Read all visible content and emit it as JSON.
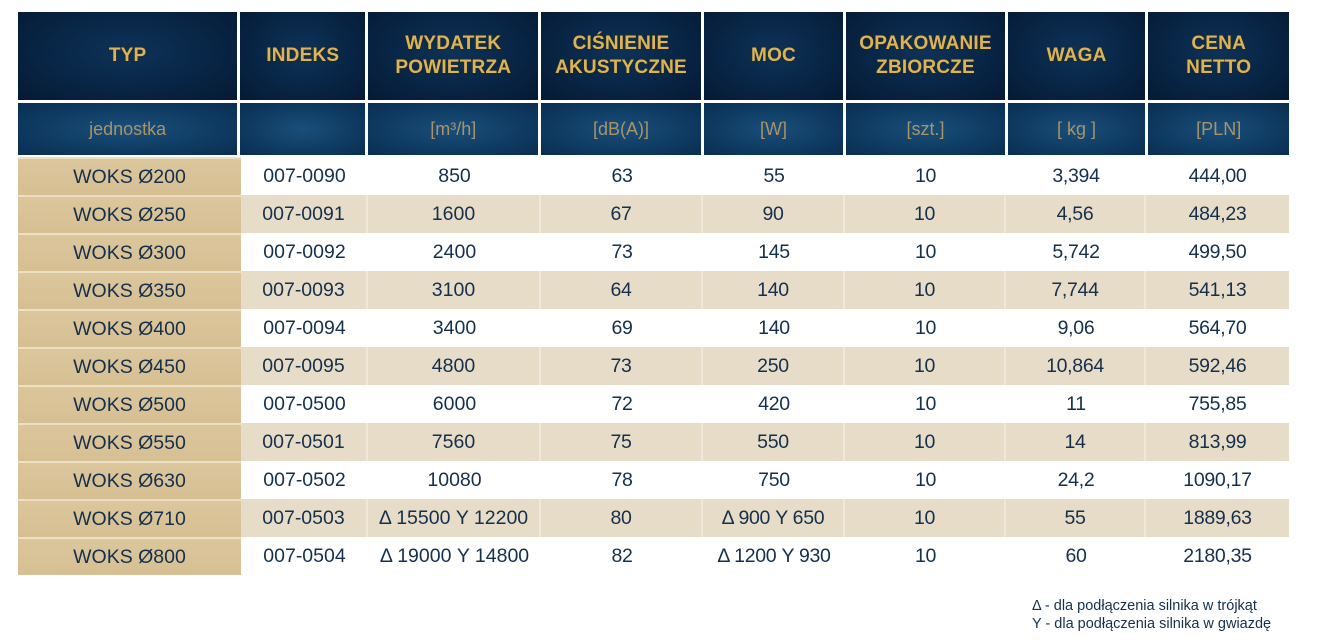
{
  "table": {
    "headers": [
      "TYP",
      "INDEKS",
      "WYDATEK POWIETRZA",
      "CIŚNIENIE AKUSTYCZNE",
      "MOC",
      "OPAKOWANIE ZBIORCZE",
      "WAGA",
      "CENA NETTO"
    ],
    "header_lines": [
      [
        "TYP"
      ],
      [
        "INDEKS"
      ],
      [
        "WYDATEK",
        "POWIETRZA"
      ],
      [
        "CIŚNIENIE",
        "AKUSTYCZNE"
      ],
      [
        "MOC"
      ],
      [
        "OPAKOWANIE",
        "ZBIORCZE"
      ],
      [
        "WAGA"
      ],
      [
        "CENA",
        "NETTO"
      ]
    ],
    "units": [
      "jednostka",
      "",
      "[m³/h]",
      "[dB(A)]",
      "[W]",
      "[szt.]",
      "[ kg ]",
      "[PLN]"
    ],
    "rows": [
      [
        "WOKS Ø200",
        "007-0090",
        "850",
        "63",
        "55",
        "10",
        "3,394",
        "444,00"
      ],
      [
        "WOKS Ø250",
        "007-0091",
        "1600",
        "67",
        "90",
        "10",
        "4,56",
        "484,23"
      ],
      [
        "WOKS Ø300",
        "007-0092",
        "2400",
        "73",
        "145",
        "10",
        "5,742",
        "499,50"
      ],
      [
        "WOKS Ø350",
        "007-0093",
        "3100",
        "64",
        "140",
        "10",
        "7,744",
        "541,13"
      ],
      [
        "WOKS Ø400",
        "007-0094",
        "3400",
        "69",
        "140",
        "10",
        "9,06",
        "564,70"
      ],
      [
        "WOKS Ø450",
        "007-0095",
        "4800",
        "73",
        "250",
        "10",
        "10,864",
        "592,46"
      ],
      [
        "WOKS Ø500",
        "007-0500",
        "6000",
        "72",
        "420",
        "10",
        "11",
        "755,85"
      ],
      [
        "WOKS Ø550",
        "007-0501",
        "7560",
        "75",
        "550",
        "10",
        "14",
        "813,99"
      ],
      [
        "WOKS Ø630",
        "007-0502",
        "10080",
        "78",
        "750",
        "10",
        "24,2",
        "1090,17"
      ],
      [
        "WOKS Ø710",
        "007-0503",
        "Δ 15500 Y 12200",
        "80",
        "Δ 900 Y 650",
        "10",
        "55",
        "1889,63"
      ],
      [
        "WOKS Ø800",
        "007-0504",
        "Δ 19000 Y 14800",
        "82",
        "Δ 1200 Y 930",
        "10",
        "60",
        "2180,35"
      ]
    ]
  },
  "legend": [
    "Δ - dla podłączenia silnika w trójkąt",
    "Y - dla podłączenia silnika w gwiazdę"
  ],
  "colors": {
    "header_bg": "#082545",
    "header_text": "#d9b45c",
    "units_bg": "#0f3c63",
    "type_col_bg": "#d9c397",
    "alt_row_bg": "#e6dcc8",
    "body_text": "#14304d"
  }
}
